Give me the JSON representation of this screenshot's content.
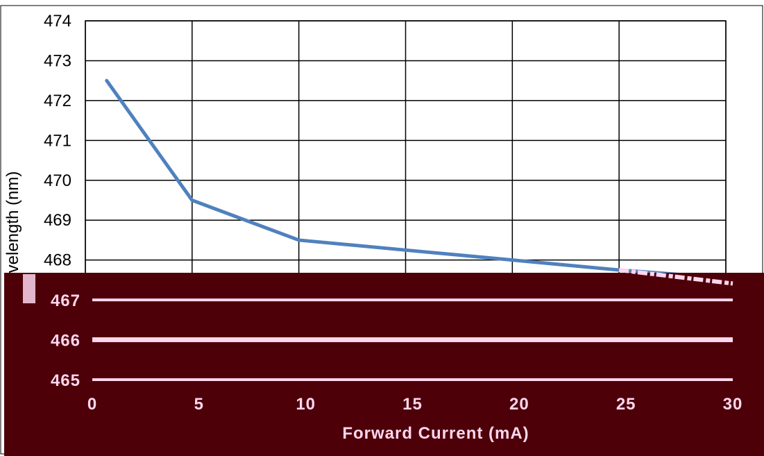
{
  "chart_data": {
    "type": "line",
    "title": "",
    "xlabel": "Forward Current (mA)",
    "ylabel": "Wavelength (nm)",
    "ylabel_visible": "velength (nm)",
    "xlim": [
      0,
      30
    ],
    "ylim": [
      465,
      474
    ],
    "x_ticks": [
      "0",
      "5",
      "10",
      "15",
      "20",
      "25",
      "30"
    ],
    "y_ticks": [
      "474",
      "473",
      "472",
      "471",
      "470",
      "469",
      "468",
      "467",
      "466",
      "465"
    ],
    "grid": true,
    "legend": "none",
    "series": [
      {
        "color": "#4f81bd",
        "x": [
          1,
          5,
          10,
          15,
          20,
          25,
          30
        ],
        "y": [
          472.5,
          469.5,
          468.5,
          468.25,
          468.0,
          467.75,
          467.55
        ]
      }
    ]
  },
  "colors": {
    "plot_border": "#000000",
    "grid": "#000000",
    "line": "#4f81bd",
    "corruption_band": "#4d0008",
    "corruption_highlight": "#ffd6ee"
  }
}
